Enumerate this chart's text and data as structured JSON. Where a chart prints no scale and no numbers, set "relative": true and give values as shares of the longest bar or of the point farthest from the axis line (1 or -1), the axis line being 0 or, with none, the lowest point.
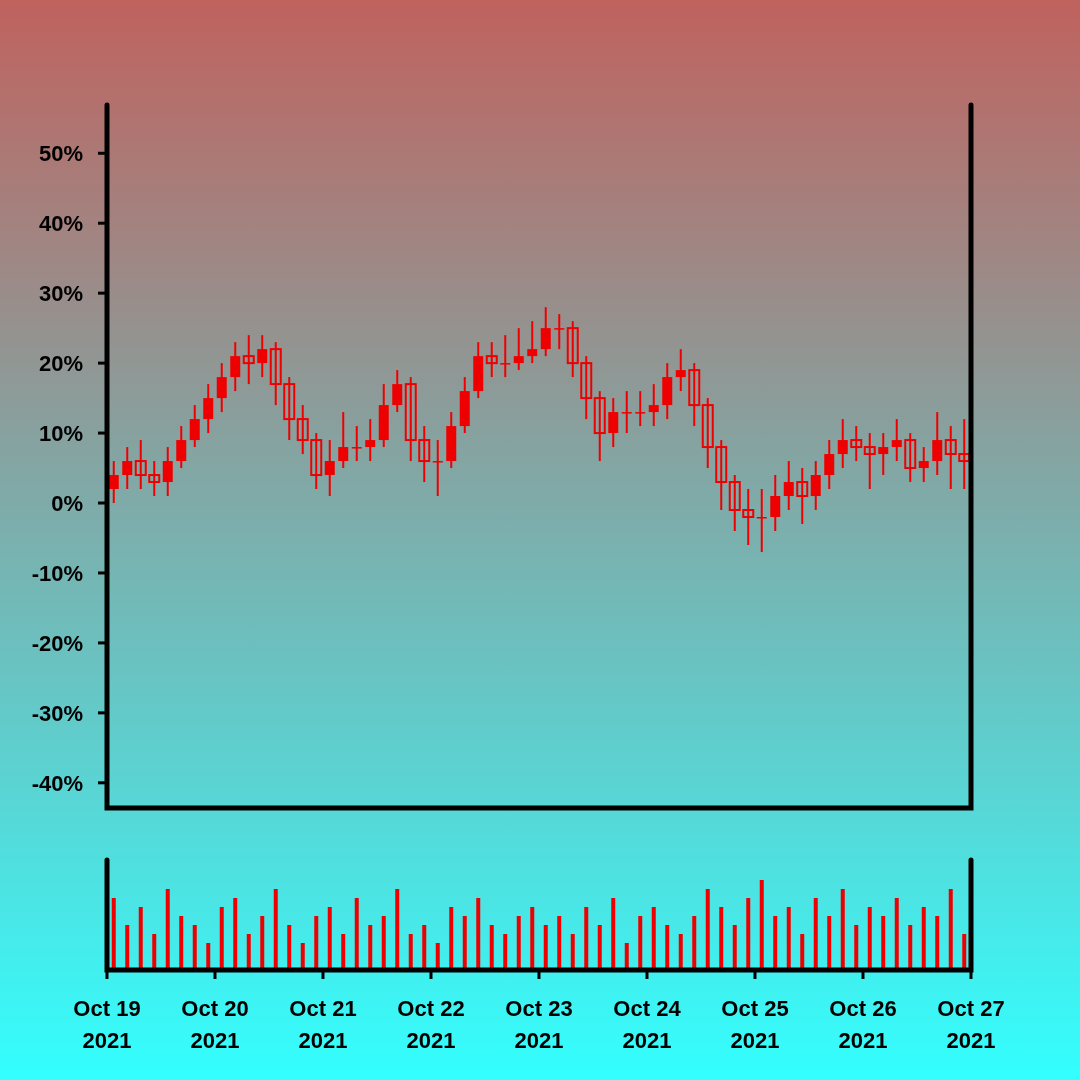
{
  "chart_data": [
    {
      "type": "candlestick",
      "color": "#ee0000",
      "tick_labels": "y",
      "x": [
        "2021-10-19T01:30",
        "2021-10-19T04:30",
        "2021-10-19T07:30",
        "2021-10-19T10:30",
        "2021-10-19T13:30",
        "2021-10-19T16:30",
        "2021-10-19T19:30",
        "2021-10-19T22:30",
        "2021-10-20T01:30",
        "2021-10-20T04:30",
        "2021-10-20T07:30",
        "2021-10-20T10:30",
        "2021-10-20T13:30",
        "2021-10-20T16:30",
        "2021-10-20T19:30",
        "2021-10-20T22:30",
        "2021-10-21T01:30",
        "2021-10-21T04:30",
        "2021-10-21T07:30",
        "2021-10-21T10:30",
        "2021-10-21T13:30",
        "2021-10-21T16:30",
        "2021-10-21T19:30",
        "2021-10-21T22:30",
        "2021-10-22T01:30",
        "2021-10-22T04:30",
        "2021-10-22T07:30",
        "2021-10-22T10:30",
        "2021-10-22T13:30",
        "2021-10-22T16:30",
        "2021-10-22T19:30",
        "2021-10-22T22:30",
        "2021-10-23T01:30",
        "2021-10-23T04:30",
        "2021-10-23T07:30",
        "2021-10-23T10:30",
        "2021-10-23T13:30",
        "2021-10-23T16:30",
        "2021-10-23T19:30",
        "2021-10-23T22:30",
        "2021-10-24T01:30",
        "2021-10-24T04:30",
        "2021-10-24T07:30",
        "2021-10-24T10:30",
        "2021-10-24T13:30",
        "2021-10-24T16:30",
        "2021-10-24T19:30",
        "2021-10-24T22:30",
        "2021-10-25T01:30",
        "2021-10-25T04:30",
        "2021-10-25T07:30",
        "2021-10-25T10:30",
        "2021-10-25T13:30",
        "2021-10-25T16:30",
        "2021-10-25T19:30",
        "2021-10-25T22:30",
        "2021-10-26T01:30",
        "2021-10-26T04:30",
        "2021-10-26T07:30",
        "2021-10-26T10:30",
        "2021-10-26T13:30",
        "2021-10-26T16:30",
        "2021-10-26T19:30",
        "2021-10-26T22:30"
      ],
      "ohlc": [
        [
          2,
          6,
          0,
          4
        ],
        [
          4,
          8,
          2,
          6
        ],
        [
          6,
          9,
          2,
          4
        ],
        [
          4,
          6,
          1,
          3
        ],
        [
          3,
          8,
          1,
          6
        ],
        [
          6,
          11,
          5,
          9
        ],
        [
          9,
          14,
          8,
          12
        ],
        [
          12,
          17,
          10,
          15
        ],
        [
          15,
          20,
          13,
          18
        ],
        [
          18,
          23,
          16,
          21
        ],
        [
          21,
          24,
          17,
          20
        ],
        [
          20,
          24,
          18,
          22
        ],
        [
          22,
          23,
          14,
          17
        ],
        [
          17,
          18,
          9,
          12
        ],
        [
          12,
          14,
          7,
          9
        ],
        [
          9,
          10,
          2,
          4
        ],
        [
          4,
          9,
          1,
          6
        ],
        [
          6,
          13,
          5,
          8
        ],
        [
          8,
          11,
          6,
          8
        ],
        [
          8,
          12,
          6,
          9
        ],
        [
          9,
          17,
          8,
          14
        ],
        [
          14,
          19,
          13,
          17
        ],
        [
          17,
          18,
          6,
          9
        ],
        [
          9,
          11,
          3,
          6
        ],
        [
          6,
          9,
          1,
          6
        ],
        [
          6,
          13,
          5,
          11
        ],
        [
          11,
          18,
          10,
          16
        ],
        [
          16,
          23,
          15,
          21
        ],
        [
          21,
          23,
          18,
          20
        ],
        [
          20,
          24,
          18,
          20
        ],
        [
          20,
          25,
          19,
          21
        ],
        [
          21,
          26,
          20,
          22
        ],
        [
          22,
          28,
          21,
          25
        ],
        [
          25,
          27,
          22,
          25
        ],
        [
          25,
          26,
          18,
          20
        ],
        [
          20,
          21,
          12,
          15
        ],
        [
          15,
          16,
          6,
          10
        ],
        [
          10,
          15,
          8,
          13
        ],
        [
          13,
          16,
          10,
          13
        ],
        [
          13,
          16,
          11,
          13
        ],
        [
          13,
          17,
          11,
          14
        ],
        [
          14,
          20,
          12,
          18
        ],
        [
          18,
          22,
          16,
          19
        ],
        [
          19,
          20,
          11,
          14
        ],
        [
          14,
          15,
          5,
          8
        ],
        [
          8,
          9,
          -1,
          3
        ],
        [
          3,
          4,
          -4,
          -1
        ],
        [
          -1,
          2,
          -6,
          -2
        ],
        [
          -2,
          2,
          -7,
          -2
        ],
        [
          -2,
          4,
          -4,
          1
        ],
        [
          1,
          6,
          -1,
          3
        ],
        [
          3,
          5,
          -3,
          1
        ],
        [
          1,
          6,
          -1,
          4
        ],
        [
          4,
          9,
          2,
          7
        ],
        [
          7,
          12,
          5,
          9
        ],
        [
          9,
          11,
          6,
          8
        ],
        [
          8,
          10,
          2,
          7
        ],
        [
          7,
          10,
          4,
          8
        ],
        [
          8,
          12,
          6,
          9
        ],
        [
          9,
          10,
          3,
          5
        ],
        [
          5,
          8,
          3,
          6
        ],
        [
          6,
          13,
          4,
          9
        ],
        [
          9,
          11,
          2,
          7
        ],
        [
          7,
          12,
          2,
          6
        ]
      ],
      "xlim": [
        "2021-10-19",
        "2021-10-27"
      ],
      "ylim": [
        -43.6,
        56.9
      ],
      "yticks": [
        {
          "value": -40,
          "label": "-40%"
        },
        {
          "value": -30,
          "label": "-30%"
        },
        {
          "value": -20,
          "label": "-20%"
        },
        {
          "value": -10,
          "label": "-10%"
        },
        {
          "value": 0,
          "label": "0%"
        },
        {
          "value": 10,
          "label": "10%"
        },
        {
          "value": 20,
          "label": "20%"
        },
        {
          "value": 30,
          "label": "30%"
        },
        {
          "value": 40,
          "label": "40%"
        },
        {
          "value": 50,
          "label": "50%"
        }
      ]
    },
    {
      "type": "bar",
      "relative": true,
      "color": "#ee0000",
      "tick_labels": "x",
      "x": [
        "2021-10-19T01:30",
        "2021-10-19T04:30",
        "2021-10-19T07:30",
        "2021-10-19T10:30",
        "2021-10-19T13:30",
        "2021-10-19T16:30",
        "2021-10-19T19:30",
        "2021-10-19T22:30",
        "2021-10-20T01:30",
        "2021-10-20T04:30",
        "2021-10-20T07:30",
        "2021-10-20T10:30",
        "2021-10-20T13:30",
        "2021-10-20T16:30",
        "2021-10-20T19:30",
        "2021-10-20T22:30",
        "2021-10-21T01:30",
        "2021-10-21T04:30",
        "2021-10-21T07:30",
        "2021-10-21T10:30",
        "2021-10-21T13:30",
        "2021-10-21T16:30",
        "2021-10-21T19:30",
        "2021-10-21T22:30",
        "2021-10-22T01:30",
        "2021-10-22T04:30",
        "2021-10-22T07:30",
        "2021-10-22T10:30",
        "2021-10-22T13:30",
        "2021-10-22T16:30",
        "2021-10-22T19:30",
        "2021-10-22T22:30",
        "2021-10-23T01:30",
        "2021-10-23T04:30",
        "2021-10-23T07:30",
        "2021-10-23T10:30",
        "2021-10-23T13:30",
        "2021-10-23T16:30",
        "2021-10-23T19:30",
        "2021-10-23T22:30",
        "2021-10-24T01:30",
        "2021-10-24T04:30",
        "2021-10-24T07:30",
        "2021-10-24T10:30",
        "2021-10-24T13:30",
        "2021-10-24T16:30",
        "2021-10-24T19:30",
        "2021-10-24T22:30",
        "2021-10-25T01:30",
        "2021-10-25T04:30",
        "2021-10-25T07:30",
        "2021-10-25T10:30",
        "2021-10-25T13:30",
        "2021-10-25T16:30",
        "2021-10-25T19:30",
        "2021-10-25T22:30",
        "2021-10-26T01:30",
        "2021-10-26T04:30",
        "2021-10-26T07:30",
        "2021-10-26T10:30",
        "2021-10-26T13:30",
        "2021-10-26T16:30",
        "2021-10-26T19:30",
        "2021-10-26T22:30"
      ],
      "values": [
        0.8,
        0.5,
        0.7,
        0.4,
        0.9,
        0.6,
        0.5,
        0.3,
        0.7,
        0.8,
        0.4,
        0.6,
        0.9,
        0.5,
        0.3,
        0.6,
        0.7,
        0.4,
        0.8,
        0.5,
        0.6,
        0.9,
        0.4,
        0.5,
        0.3,
        0.7,
        0.6,
        0.8,
        0.5,
        0.4,
        0.6,
        0.7,
        0.5,
        0.6,
        0.4,
        0.7,
        0.5,
        0.8,
        0.3,
        0.6,
        0.7,
        0.5,
        0.4,
        0.6,
        0.9,
        0.7,
        0.5,
        0.8,
        1,
        0.6,
        0.7,
        0.4,
        0.8,
        0.6,
        0.9,
        0.5,
        0.7,
        0.6,
        0.8,
        0.5,
        0.7,
        0.6,
        0.9,
        0.4
      ],
      "xlim": [
        "2021-10-19",
        "2021-10-27"
      ],
      "xticks": [
        {
          "value": "2021-10-19",
          "label": "Oct 19 2021"
        },
        {
          "value": "2021-10-20",
          "label": "Oct 20 2021"
        },
        {
          "value": "2021-10-21",
          "label": "Oct 21 2021"
        },
        {
          "value": "2021-10-22",
          "label": "Oct 22 2021"
        },
        {
          "value": "2021-10-23",
          "label": "Oct 23 2021"
        },
        {
          "value": "2021-10-24",
          "label": "Oct 24 2021"
        },
        {
          "value": "2021-10-25",
          "label": "Oct 25 2021"
        },
        {
          "value": "2021-10-26",
          "label": "Oct 26 2021"
        },
        {
          "value": "2021-10-27",
          "label": "Oct 27 2021"
        }
      ]
    }
  ]
}
